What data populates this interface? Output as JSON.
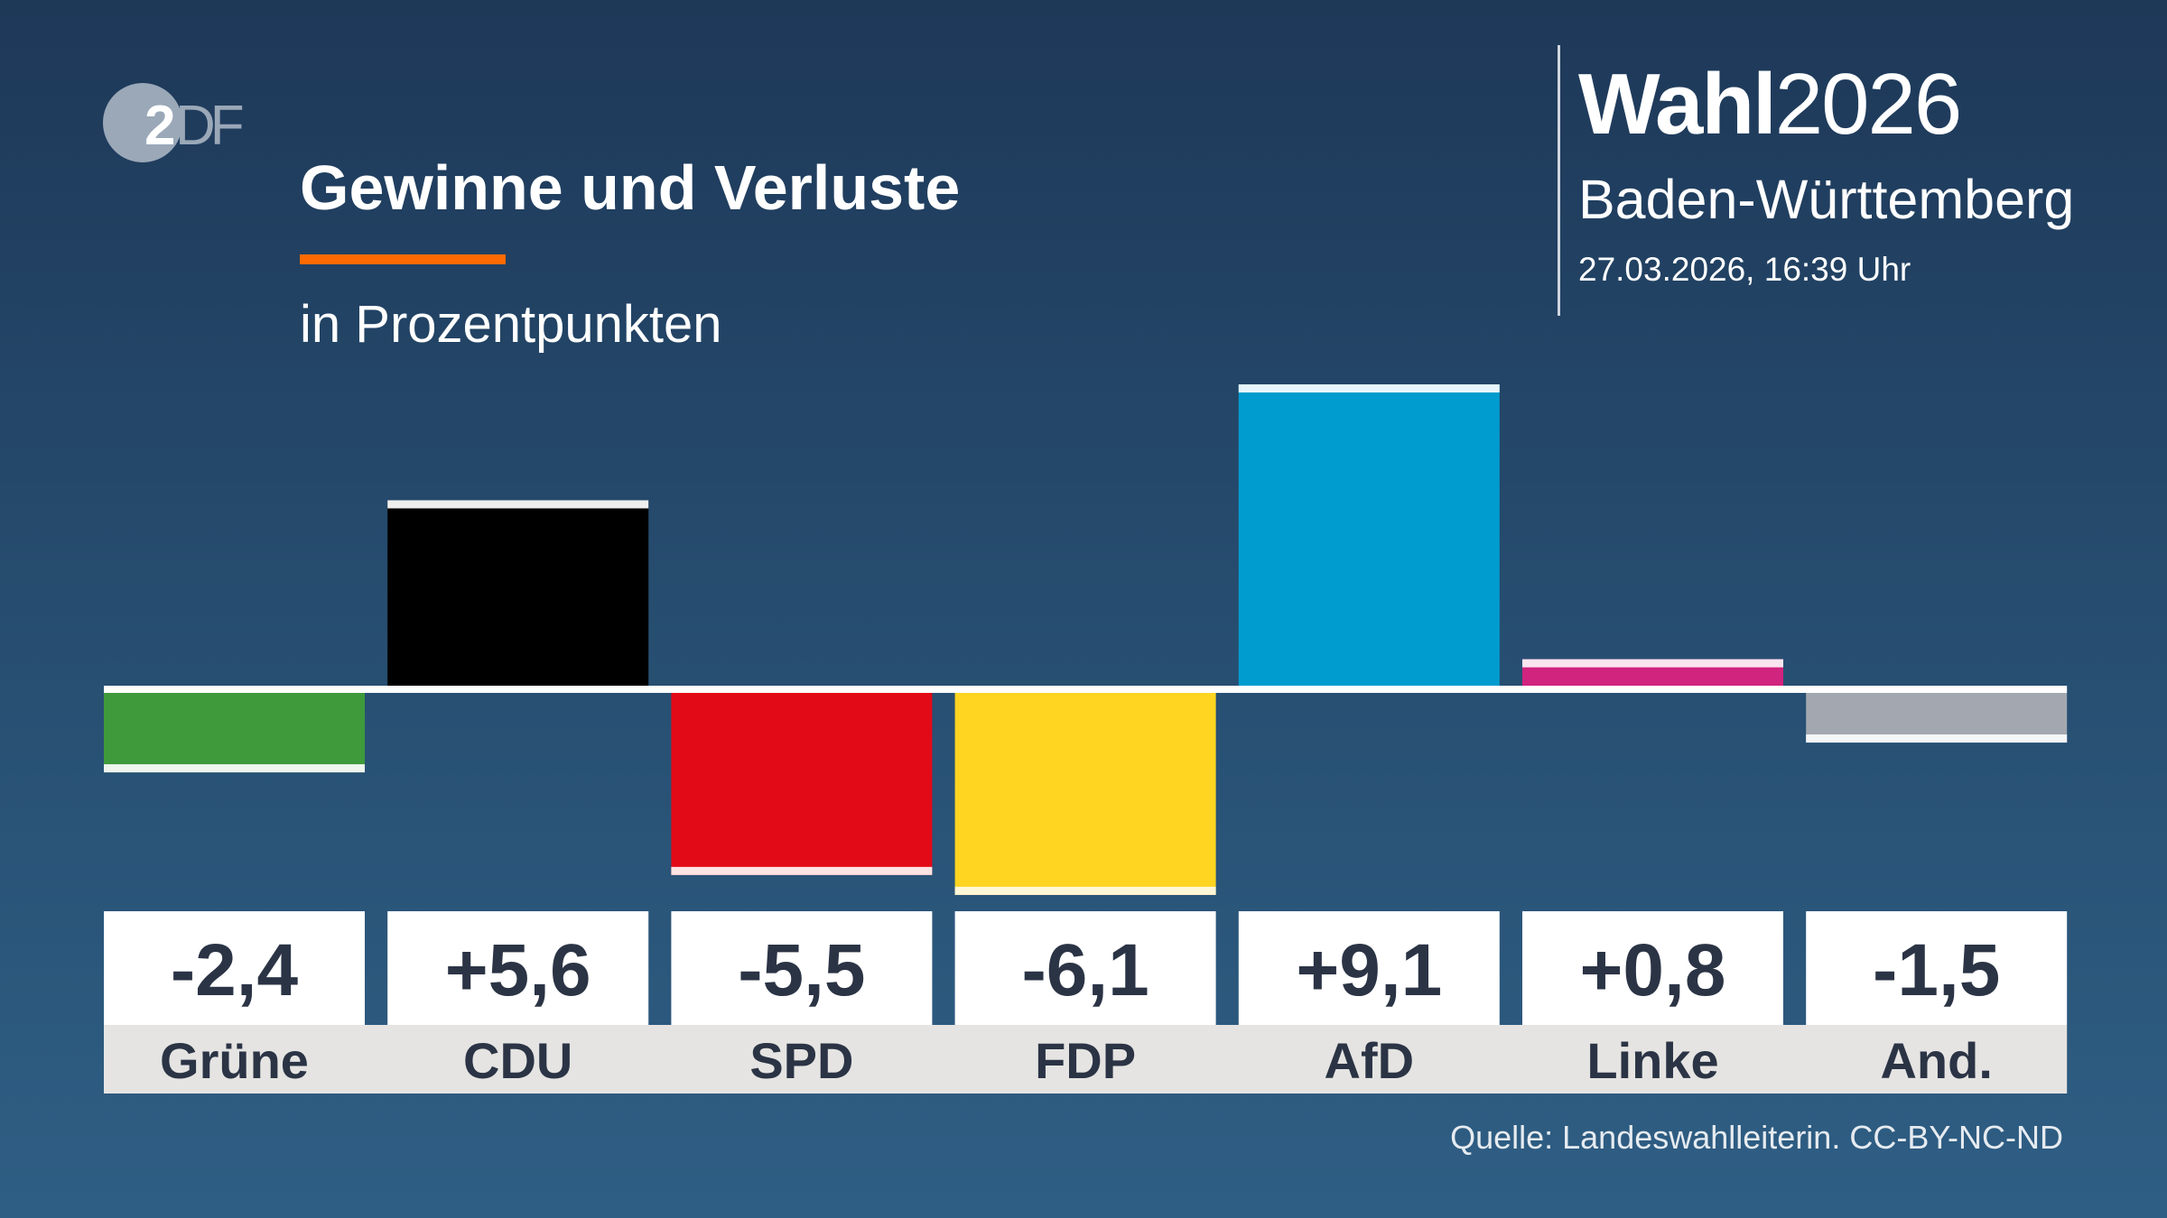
{
  "logo": {
    "text": "ZDF"
  },
  "header": {
    "title": "Gewinne und Verluste",
    "subtitle": "in Prozentpunkten",
    "accent_color": "#ff6a00"
  },
  "brand": {
    "bold": "Wahl",
    "year": "2026",
    "region": "Baden-Württemberg",
    "date": "27.03.2026, 16:39 Uhr"
  },
  "source": "Quelle: Landeswahlleiterin. CC-BY-NC-ND",
  "chart_data": {
    "type": "bar",
    "title": "Gewinne und Verluste",
    "subtitle": "in Prozentpunkten",
    "categories": [
      "Grüne",
      "CDU",
      "SPD",
      "FDP",
      "AfD",
      "Linke",
      "And."
    ],
    "values": [
      -2.4,
      5.6,
      -5.5,
      -6.1,
      9.1,
      0.8,
      -1.5
    ],
    "value_labels": [
      "-2,4",
      "+5,6",
      "-5,5",
      "-6,1",
      "+9,1",
      "+0,8",
      "-1,5"
    ],
    "colors": [
      "#3f9a3c",
      "#000000",
      "#e30a17",
      "#ffd521",
      "#009ccf",
      "#d0247f",
      "#a3a8b0"
    ],
    "cap_colors": [
      "#eef6ee",
      "#eeeeee",
      "#fde4e4",
      "#fff7d8",
      "#e6f6fb",
      "#fbe6f0",
      "#f4f6f8"
    ],
    "ylim": [
      -6.1,
      9.1
    ],
    "grid": false,
    "legend": "none"
  }
}
